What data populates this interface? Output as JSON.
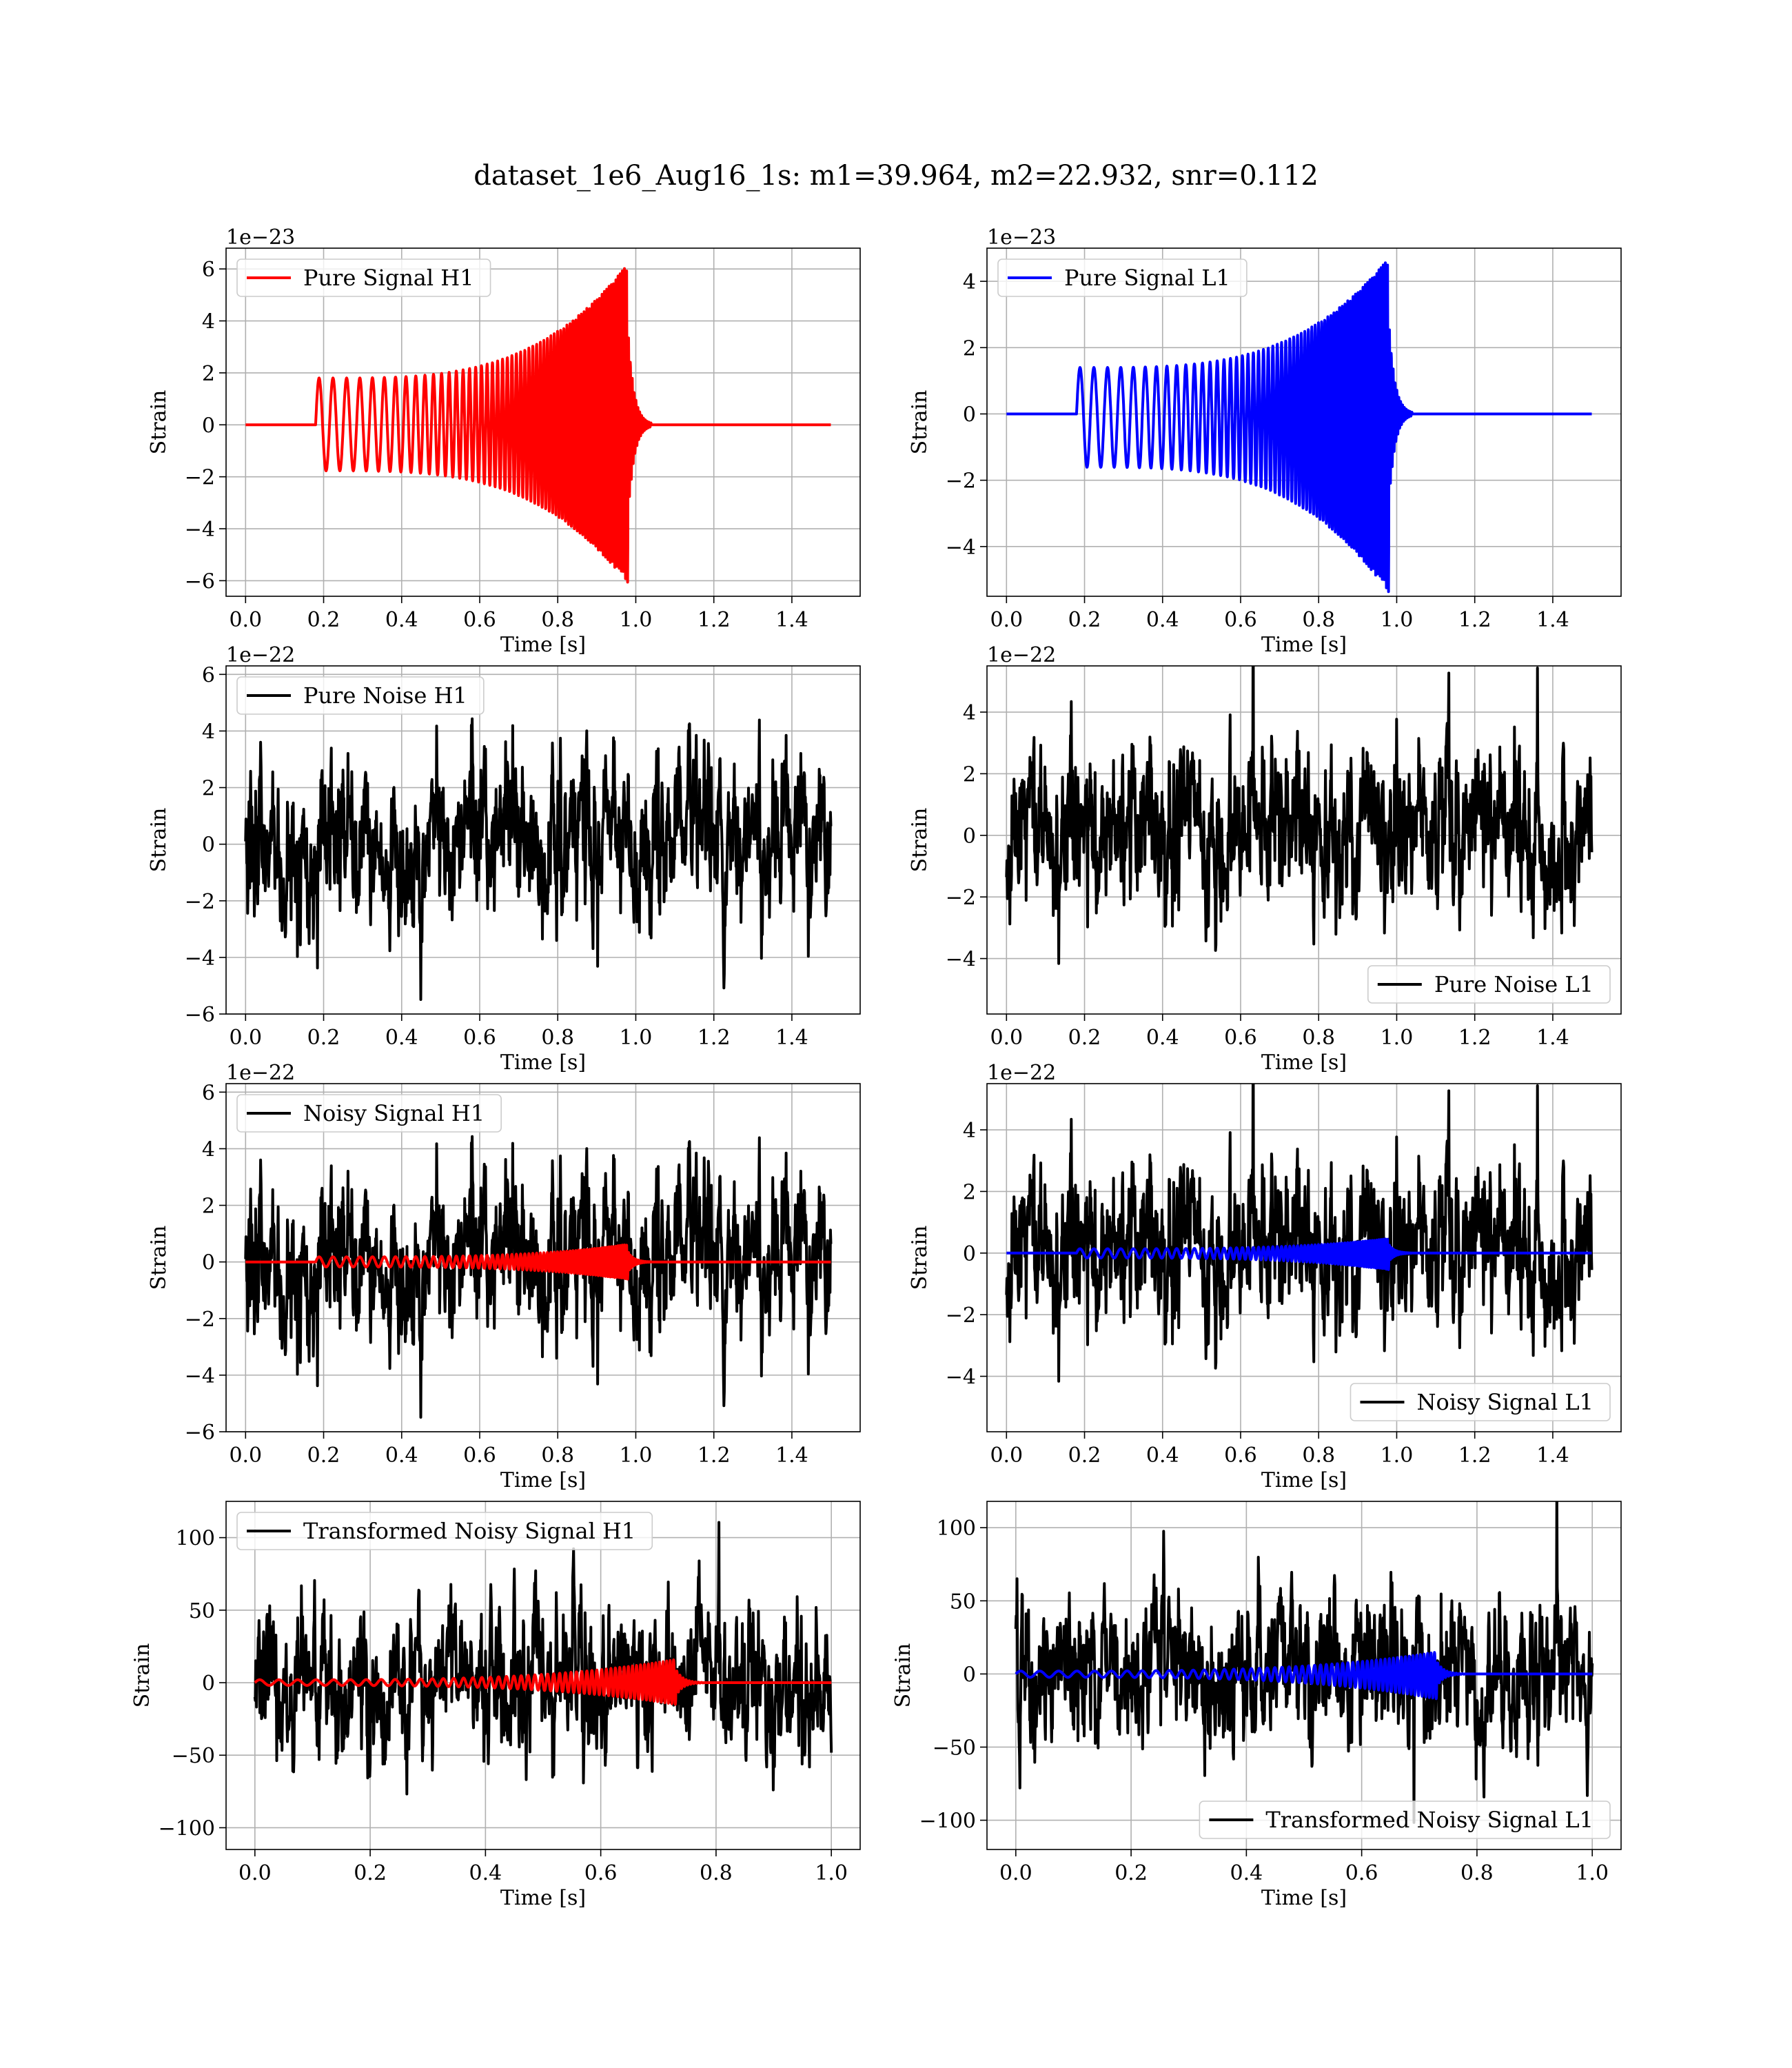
{
  "figure": {
    "suptitle": "dataset_1e6_Aug16_1s: m1=39.964, m2=22.932, snr=0.112"
  },
  "colors": {
    "h1_signal": "#ff0000",
    "l1_signal": "#0000ff",
    "noise": "#000000",
    "grid": "#b0b0b0"
  },
  "chart_data": [
    {
      "id": "pure-signal-h1",
      "type": "line",
      "xlabel": "Time [s]",
      "ylabel": "Strain",
      "offset_text": "1e−23",
      "xlim": [
        -0.05,
        1.575
      ],
      "ylim": [
        -6.6,
        6.8
      ],
      "xticks": [
        0.0,
        0.2,
        0.4,
        0.6,
        0.8,
        1.0,
        1.2,
        1.4
      ],
      "xtick_labels": [
        "0.0",
        "0.2",
        "0.4",
        "0.6",
        "0.8",
        "1.0",
        "1.2",
        "1.4"
      ],
      "yticks": [
        -6,
        -4,
        -2,
        0,
        2,
        4,
        6
      ],
      "ytick_labels": [
        "−6",
        "−4",
        "−2",
        "0",
        "2",
        "4",
        "6"
      ],
      "legend": {
        "loc": "upper left",
        "entries": [
          {
            "label": "Pure Signal H1",
            "color": "#ff0000"
          }
        ]
      },
      "series": [
        {
          "name": "Pure Signal H1",
          "color": "#ff0000",
          "kind": "chirp",
          "x_range": [
            0.0,
            1.5
          ],
          "merger": 0.98,
          "start": 0.18,
          "amp_start": 1.8,
          "amp_peak": 6.2,
          "amp_neg_peak": 6.1,
          "freq_start": 28,
          "freq_end": 190,
          "ringdown": 0.015
        }
      ]
    },
    {
      "id": "pure-signal-l1",
      "type": "line",
      "xlabel": "Time [s]",
      "ylabel": "Strain",
      "offset_text": "1e−23",
      "xlim": [
        -0.05,
        1.575
      ],
      "ylim": [
        -5.5,
        5.0
      ],
      "xticks": [
        0.0,
        0.2,
        0.4,
        0.6,
        0.8,
        1.0,
        1.2,
        1.4
      ],
      "xtick_labels": [
        "0.0",
        "0.2",
        "0.4",
        "0.6",
        "0.8",
        "1.0",
        "1.2",
        "1.4"
      ],
      "yticks": [
        -4,
        -2,
        0,
        2,
        4
      ],
      "ytick_labels": [
        "−4",
        "−2",
        "0",
        "2",
        "4"
      ],
      "legend": {
        "loc": "upper left",
        "entries": [
          {
            "label": "Pure Signal L1",
            "color": "#0000ff"
          }
        ]
      },
      "series": [
        {
          "name": "Pure Signal L1",
          "color": "#0000ff",
          "kind": "chirp",
          "x_range": [
            0.0,
            1.5
          ],
          "merger": 0.98,
          "start": 0.18,
          "amp_start": 1.4,
          "amp_peak": 4.7,
          "amp_neg_peak": 5.4,
          "freq_start": 28,
          "freq_end": 190,
          "ringdown": 0.015
        }
      ]
    },
    {
      "id": "pure-noise-h1",
      "type": "line",
      "xlabel": "Time [s]",
      "ylabel": "Strain",
      "offset_text": "1e−22",
      "xlim": [
        -0.05,
        1.575
      ],
      "ylim": [
        -6.0,
        6.3
      ],
      "xticks": [
        0.0,
        0.2,
        0.4,
        0.6,
        0.8,
        1.0,
        1.2,
        1.4
      ],
      "xtick_labels": [
        "0.0",
        "0.2",
        "0.4",
        "0.6",
        "0.8",
        "1.0",
        "1.2",
        "1.4"
      ],
      "yticks": [
        -6,
        -4,
        -2,
        0,
        2,
        4,
        6
      ],
      "ytick_labels": [
        "−6",
        "−4",
        "−2",
        "0",
        "2",
        "4",
        "6"
      ],
      "legend": {
        "loc": "upper left",
        "entries": [
          {
            "label": "Pure Noise H1",
            "color": "#000000"
          }
        ]
      },
      "series": [
        {
          "name": "Pure Noise H1",
          "color": "#000000",
          "kind": "noise",
          "x_range": [
            0.0,
            1.5
          ],
          "sigma": 1.7,
          "seed": 11
        }
      ]
    },
    {
      "id": "pure-noise-l1",
      "type": "line",
      "xlabel": "Time [s]",
      "ylabel": "Strain",
      "offset_text": "1e−22",
      "xlim": [
        -0.05,
        1.575
      ],
      "ylim": [
        -5.8,
        5.5
      ],
      "xticks": [
        0.0,
        0.2,
        0.4,
        0.6,
        0.8,
        1.0,
        1.2,
        1.4
      ],
      "xtick_labels": [
        "0.0",
        "0.2",
        "0.4",
        "0.6",
        "0.8",
        "1.0",
        "1.2",
        "1.4"
      ],
      "yticks": [
        -4,
        -2,
        0,
        2,
        4
      ],
      "ytick_labels": [
        "−4",
        "−2",
        "0",
        "2",
        "4"
      ],
      "legend": {
        "loc": "lower right",
        "entries": [
          {
            "label": "Pure Noise L1",
            "color": "#000000"
          }
        ]
      },
      "series": [
        {
          "name": "Pure Noise L1",
          "color": "#000000",
          "kind": "noise",
          "x_range": [
            0.0,
            1.5
          ],
          "sigma": 1.6,
          "seed": 23
        }
      ]
    },
    {
      "id": "noisy-signal-h1",
      "type": "line",
      "xlabel": "Time [s]",
      "ylabel": "Strain",
      "offset_text": "1e−22",
      "xlim": [
        -0.05,
        1.575
      ],
      "ylim": [
        -6.0,
        6.3
      ],
      "xticks": [
        0.0,
        0.2,
        0.4,
        0.6,
        0.8,
        1.0,
        1.2,
        1.4
      ],
      "xtick_labels": [
        "0.0",
        "0.2",
        "0.4",
        "0.6",
        "0.8",
        "1.0",
        "1.2",
        "1.4"
      ],
      "yticks": [
        -6,
        -4,
        -2,
        0,
        2,
        4,
        6
      ],
      "ytick_labels": [
        "−6",
        "−4",
        "−2",
        "0",
        "2",
        "4",
        "6"
      ],
      "legend": {
        "loc": "upper left",
        "entries": [
          {
            "label": "Noisy Signal H1",
            "color": "#000000"
          }
        ]
      },
      "series": [
        {
          "name": "Noisy Signal H1",
          "color": "#000000",
          "kind": "noise",
          "x_range": [
            0.0,
            1.5
          ],
          "sigma": 1.7,
          "seed": 11
        },
        {
          "color": "#ff0000",
          "kind": "chirp",
          "x_range": [
            0.0,
            1.5
          ],
          "merger": 0.98,
          "start": 0.18,
          "amp_start": 0.18,
          "amp_peak": 0.62,
          "amp_neg_peak": 0.61,
          "freq_start": 28,
          "freq_end": 190,
          "ringdown": 0.015
        }
      ]
    },
    {
      "id": "noisy-signal-l1",
      "type": "line",
      "xlabel": "Time [s]",
      "ylabel": "Strain",
      "offset_text": "1e−22",
      "xlim": [
        -0.05,
        1.575
      ],
      "ylim": [
        -5.8,
        5.5
      ],
      "xticks": [
        0.0,
        0.2,
        0.4,
        0.6,
        0.8,
        1.0,
        1.2,
        1.4
      ],
      "xtick_labels": [
        "0.0",
        "0.2",
        "0.4",
        "0.6",
        "0.8",
        "1.0",
        "1.2",
        "1.4"
      ],
      "yticks": [
        -4,
        -2,
        0,
        2,
        4
      ],
      "ytick_labels": [
        "−4",
        "−2",
        "0",
        "2",
        "4"
      ],
      "legend": {
        "loc": "lower right",
        "entries": [
          {
            "label": "Noisy Signal L1",
            "color": "#000000"
          }
        ]
      },
      "series": [
        {
          "name": "Noisy Signal L1",
          "color": "#000000",
          "kind": "noise",
          "x_range": [
            0.0,
            1.5
          ],
          "sigma": 1.6,
          "seed": 23
        },
        {
          "color": "#0000ff",
          "kind": "chirp",
          "x_range": [
            0.0,
            1.5
          ],
          "merger": 0.98,
          "start": 0.18,
          "amp_start": 0.14,
          "amp_peak": 0.47,
          "amp_neg_peak": 0.54,
          "freq_start": 28,
          "freq_end": 190,
          "ringdown": 0.015
        }
      ]
    },
    {
      "id": "transformed-noisy-signal-h1",
      "type": "line",
      "xlabel": "Time [s]",
      "ylabel": "Strain",
      "offset_text": "",
      "xlim": [
        -0.05,
        1.05
      ],
      "ylim": [
        -115,
        125
      ],
      "xticks": [
        0.0,
        0.2,
        0.4,
        0.6,
        0.8,
        1.0
      ],
      "xtick_labels": [
        "0.0",
        "0.2",
        "0.4",
        "0.6",
        "0.8",
        "1.0"
      ],
      "yticks": [
        -100,
        -50,
        0,
        50,
        100
      ],
      "ytick_labels": [
        "−100",
        "−50",
        "0",
        "50",
        "100"
      ],
      "legend": {
        "loc": "upper left",
        "entries": [
          {
            "label": "Transformed Noisy Signal H1",
            "color": "#000000"
          }
        ]
      },
      "series": [
        {
          "name": "Transformed Noisy Signal H1",
          "color": "#000000",
          "kind": "noise",
          "x_range": [
            0.0,
            1.0
          ],
          "sigma": 30,
          "seed": 37
        },
        {
          "color": "#ff0000",
          "kind": "chirp",
          "x_range": [
            0.0,
            1.0
          ],
          "merger": 0.73,
          "start": 0.0,
          "amp_start": 2.0,
          "amp_peak": 16,
          "amp_neg_peak": 15,
          "freq_start": 30,
          "freq_end": 170,
          "ringdown": 0.012
        }
      ]
    },
    {
      "id": "transformed-noisy-signal-l1",
      "type": "line",
      "xlabel": "Time [s]",
      "ylabel": "Strain",
      "offset_text": "",
      "xlim": [
        -0.05,
        1.05
      ],
      "ylim": [
        -120,
        118
      ],
      "xticks": [
        0.0,
        0.2,
        0.4,
        0.6,
        0.8,
        1.0
      ],
      "xtick_labels": [
        "0.0",
        "0.2",
        "0.4",
        "0.6",
        "0.8",
        "1.0"
      ],
      "yticks": [
        -100,
        -50,
        0,
        50,
        100
      ],
      "ytick_labels": [
        "−100",
        "−50",
        "0",
        "50",
        "100"
      ],
      "legend": {
        "loc": "lower right",
        "entries": [
          {
            "label": "Transformed Noisy Signal L1",
            "color": "#000000"
          }
        ]
      },
      "series": [
        {
          "name": "Transformed Noisy Signal L1",
          "color": "#000000",
          "kind": "noise",
          "x_range": [
            0.0,
            1.0
          ],
          "sigma": 30,
          "seed": 41
        },
        {
          "color": "#0000ff",
          "kind": "chirp",
          "x_range": [
            0.0,
            1.0
          ],
          "merger": 0.73,
          "start": 0.0,
          "amp_start": 2.0,
          "amp_peak": 15,
          "amp_neg_peak": 17,
          "freq_start": 30,
          "freq_end": 170,
          "ringdown": 0.012
        }
      ]
    }
  ]
}
